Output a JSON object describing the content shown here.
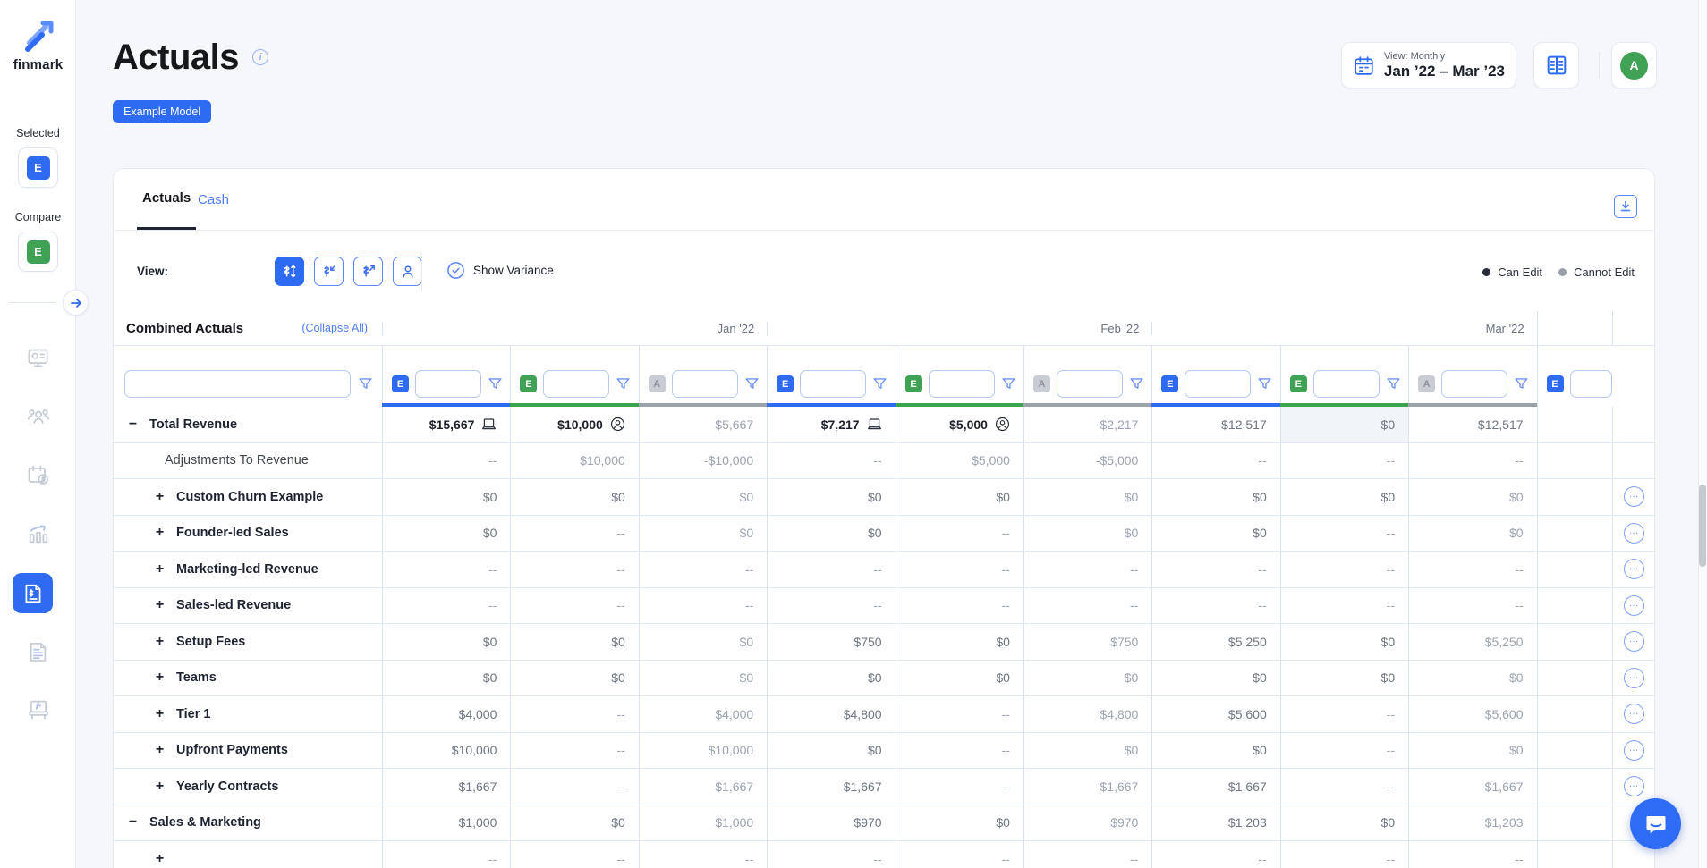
{
  "brand": {
    "name": "finmark"
  },
  "sidebar": {
    "selected_label": "Selected",
    "selected_badge": "E",
    "compare_label": "Compare",
    "compare_badge": "E",
    "nav": [
      "dashboard-icon",
      "team-icon",
      "calendar-dollar-icon",
      "growth-chart-icon",
      "actuals-invoice-icon",
      "document-icon",
      "formula-board-icon"
    ]
  },
  "header": {
    "title": "Actuals",
    "badge": "Example Model",
    "view_label": "View: Monthly",
    "date_range": "Jan ’22 – Mar ’23",
    "avatar_initial": "A"
  },
  "tabs": [
    {
      "label": "Actuals",
      "active": true
    },
    {
      "label": "Cash",
      "active": false
    }
  ],
  "toolbar": {
    "view_label": "View:",
    "view_buttons": [
      "dollar-updown-icon",
      "dollar-inflow-icon",
      "dollar-outflow-icon",
      "person-view-icon"
    ],
    "show_variance": "Show Variance",
    "can_edit": "Can Edit",
    "cannot_edit": "Cannot Edit"
  },
  "table": {
    "title": "Combined Actuals",
    "collapse_all": "(Collapse All)",
    "months": [
      "Jan '22",
      "Feb '22",
      "Mar '22"
    ],
    "col_pattern": [
      "e",
      "g",
      "a"
    ],
    "filter_badges": [
      "E",
      "E",
      "A"
    ],
    "rows": [
      {
        "name": "Total Revenue",
        "style": "bold",
        "expander": "minus",
        "menu": false,
        "cells": [
          {
            "v": "$15,667",
            "t": "dark",
            "i": "laptop"
          },
          {
            "v": "$10,000",
            "t": "dark",
            "i": "person"
          },
          {
            "v": "$5,667",
            "t": "light"
          },
          {
            "v": "$7,217",
            "t": "dark",
            "i": "laptop"
          },
          {
            "v": "$5,000",
            "t": "dark",
            "i": "person"
          },
          {
            "v": "$2,217",
            "t": "light"
          },
          {
            "v": "$12,517",
            "t": "gray"
          },
          {
            "v": "$0",
            "t": "gray",
            "s": true
          },
          {
            "v": "$12,517",
            "t": "gray"
          }
        ]
      },
      {
        "name": "Adjustments To Revenue",
        "style": "regular",
        "expander": "none",
        "menu": false,
        "cells": [
          {
            "v": "--",
            "t": "light"
          },
          {
            "v": "$10,000",
            "t": "light"
          },
          {
            "v": "-$10,000",
            "t": "light"
          },
          {
            "v": "--",
            "t": "light"
          },
          {
            "v": "$5,000",
            "t": "light"
          },
          {
            "v": "-$5,000",
            "t": "light"
          },
          {
            "v": "--",
            "t": "light"
          },
          {
            "v": "--",
            "t": "light"
          },
          {
            "v": "--",
            "t": "light"
          }
        ]
      },
      {
        "name": "Custom Churn Example",
        "style": "bold",
        "expander": "plus",
        "menu": true,
        "cells": [
          {
            "v": "$0",
            "t": "gray"
          },
          {
            "v": "$0",
            "t": "gray"
          },
          {
            "v": "$0",
            "t": "light"
          },
          {
            "v": "$0",
            "t": "gray"
          },
          {
            "v": "$0",
            "t": "gray"
          },
          {
            "v": "$0",
            "t": "light"
          },
          {
            "v": "$0",
            "t": "gray"
          },
          {
            "v": "$0",
            "t": "gray"
          },
          {
            "v": "$0",
            "t": "light"
          }
        ]
      },
      {
        "name": "Founder-led Sales",
        "style": "bold",
        "expander": "plus",
        "menu": true,
        "cells": [
          {
            "v": "$0",
            "t": "gray"
          },
          {
            "v": "--",
            "t": "light"
          },
          {
            "v": "$0",
            "t": "light"
          },
          {
            "v": "$0",
            "t": "gray"
          },
          {
            "v": "--",
            "t": "light"
          },
          {
            "v": "$0",
            "t": "light"
          },
          {
            "v": "$0",
            "t": "gray"
          },
          {
            "v": "--",
            "t": "light"
          },
          {
            "v": "$0",
            "t": "light"
          }
        ]
      },
      {
        "name": "Marketing-led Revenue",
        "style": "bold",
        "expander": "plus",
        "menu": true,
        "cells": [
          {
            "v": "--",
            "t": "light"
          },
          {
            "v": "--",
            "t": "light"
          },
          {
            "v": "--",
            "t": "light"
          },
          {
            "v": "--",
            "t": "light"
          },
          {
            "v": "--",
            "t": "light"
          },
          {
            "v": "--",
            "t": "light"
          },
          {
            "v": "--",
            "t": "light"
          },
          {
            "v": "--",
            "t": "light"
          },
          {
            "v": "--",
            "t": "light"
          }
        ]
      },
      {
        "name": "Sales-led Revenue",
        "style": "bold",
        "expander": "plus",
        "menu": true,
        "cells": [
          {
            "v": "--",
            "t": "light"
          },
          {
            "v": "--",
            "t": "light"
          },
          {
            "v": "--",
            "t": "light"
          },
          {
            "v": "--",
            "t": "light"
          },
          {
            "v": "--",
            "t": "light"
          },
          {
            "v": "--",
            "t": "light"
          },
          {
            "v": "--",
            "t": "light"
          },
          {
            "v": "--",
            "t": "light"
          },
          {
            "v": "--",
            "t": "light"
          }
        ]
      },
      {
        "name": "Setup Fees",
        "style": "bold",
        "expander": "plus",
        "menu": true,
        "cells": [
          {
            "v": "$0",
            "t": "gray"
          },
          {
            "v": "$0",
            "t": "gray"
          },
          {
            "v": "$0",
            "t": "light"
          },
          {
            "v": "$750",
            "t": "gray"
          },
          {
            "v": "$0",
            "t": "gray"
          },
          {
            "v": "$750",
            "t": "light"
          },
          {
            "v": "$5,250",
            "t": "gray"
          },
          {
            "v": "$0",
            "t": "gray"
          },
          {
            "v": "$5,250",
            "t": "light"
          }
        ]
      },
      {
        "name": "Teams",
        "style": "bold",
        "expander": "plus",
        "menu": true,
        "cells": [
          {
            "v": "$0",
            "t": "gray"
          },
          {
            "v": "$0",
            "t": "gray"
          },
          {
            "v": "$0",
            "t": "light"
          },
          {
            "v": "$0",
            "t": "gray"
          },
          {
            "v": "$0",
            "t": "gray"
          },
          {
            "v": "$0",
            "t": "light"
          },
          {
            "v": "$0",
            "t": "gray"
          },
          {
            "v": "$0",
            "t": "gray"
          },
          {
            "v": "$0",
            "t": "light"
          }
        ]
      },
      {
        "name": "Tier 1",
        "style": "bold",
        "expander": "plus",
        "menu": true,
        "cells": [
          {
            "v": "$4,000",
            "t": "gray"
          },
          {
            "v": "--",
            "t": "light"
          },
          {
            "v": "$4,000",
            "t": "light"
          },
          {
            "v": "$4,800",
            "t": "gray"
          },
          {
            "v": "--",
            "t": "light"
          },
          {
            "v": "$4,800",
            "t": "light"
          },
          {
            "v": "$5,600",
            "t": "gray"
          },
          {
            "v": "--",
            "t": "light"
          },
          {
            "v": "$5,600",
            "t": "light"
          }
        ]
      },
      {
        "name": "Upfront Payments",
        "style": "bold",
        "expander": "plus",
        "menu": true,
        "cells": [
          {
            "v": "$10,000",
            "t": "gray"
          },
          {
            "v": "--",
            "t": "light"
          },
          {
            "v": "$10,000",
            "t": "light"
          },
          {
            "v": "$0",
            "t": "gray"
          },
          {
            "v": "--",
            "t": "light"
          },
          {
            "v": "$0",
            "t": "light"
          },
          {
            "v": "$0",
            "t": "gray"
          },
          {
            "v": "--",
            "t": "light"
          },
          {
            "v": "$0",
            "t": "light"
          }
        ]
      },
      {
        "name": "Yearly Contracts",
        "style": "bold",
        "expander": "plus",
        "menu": true,
        "cells": [
          {
            "v": "$1,667",
            "t": "gray"
          },
          {
            "v": "--",
            "t": "light"
          },
          {
            "v": "$1,667",
            "t": "light"
          },
          {
            "v": "$1,667",
            "t": "gray"
          },
          {
            "v": "--",
            "t": "light"
          },
          {
            "v": "$1,667",
            "t": "light"
          },
          {
            "v": "$1,667",
            "t": "gray"
          },
          {
            "v": "--",
            "t": "light"
          },
          {
            "v": "$1,667",
            "t": "light"
          }
        ]
      },
      {
        "name": "Sales & Marketing",
        "style": "bold",
        "expander": "minus",
        "menu": false,
        "cells": [
          {
            "v": "$1,000",
            "t": "gray"
          },
          {
            "v": "$0",
            "t": "gray"
          },
          {
            "v": "$1,000",
            "t": "light"
          },
          {
            "v": "$970",
            "t": "gray"
          },
          {
            "v": "$0",
            "t": "gray"
          },
          {
            "v": "$970",
            "t": "light"
          },
          {
            "v": "$1,203",
            "t": "gray"
          },
          {
            "v": "$0",
            "t": "gray"
          },
          {
            "v": "$1,203",
            "t": "light"
          }
        ]
      },
      {
        "name": "",
        "style": "bold",
        "expander": "plus",
        "menu": false,
        "cells": [
          {
            "v": "--",
            "t": "light"
          },
          {
            "v": "--",
            "t": "light"
          },
          {
            "v": "--",
            "t": "light"
          },
          {
            "v": "--",
            "t": "light"
          },
          {
            "v": "--",
            "t": "light"
          },
          {
            "v": "--",
            "t": "light"
          },
          {
            "v": "--",
            "t": "light"
          },
          {
            "v": "--",
            "t": "light"
          },
          {
            "v": "--",
            "t": "light"
          }
        ]
      }
    ]
  },
  "colors": {
    "primary_blue": "#2e6bf3",
    "scenario_green": "#3fa254",
    "bar_blue": "#2f6cf3",
    "bar_green": "#3aa44f",
    "bar_gray": "#9ca2ab",
    "link_blue": "#4d7df6"
  }
}
